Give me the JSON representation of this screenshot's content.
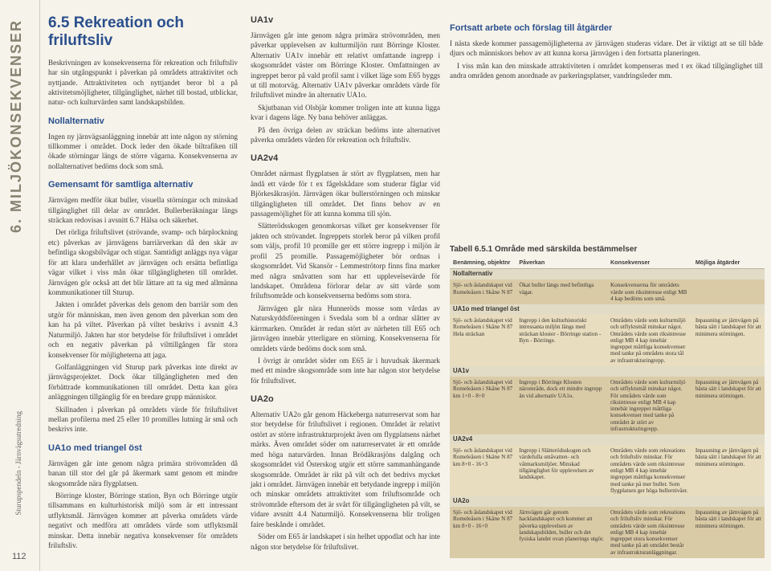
{
  "sidebar": {
    "title": "6. MILJÖKONSEKVENSER",
    "subtitle": "Sturupspendeln - Järnvägsutredning",
    "page": "112"
  },
  "heading": "6.5 Rekreation och friluftsliv",
  "intro1": "Beskrivningen av konsekvenserna för rekreation och friluftsliv har sin utgångspunkt i påverkan på områdets attraktivitet och nyttjande. Attraktiviteten och nyttjandet beror bl a på aktivitetsmöjligheter, tillgänglighet, närhet till bostad, utblickar, natur- och kulturvärden samt landskapsbilden.",
  "h_noll": "Nollalternativ",
  "noll1": "Ingen ny järnvägsanläggning innebär att inte någon ny störning tillkommer i området. Dock leder den ökade biltrafiken till ökade störningar längs de större vägarna. Konsekvenserna av nollalternativet bedöms dock som små.",
  "h_gem": "Gemensamt för samtliga alternativ",
  "gem1": "Järnvägen medför ökat buller, visuella störningar och minskad tillgänglighet till delar av området. Bullerberäkningar längs sträckan redovisas i avsnitt 6.7 Hälsa och säkerhet.",
  "gem2": "Det rörliga friluftslivet (strövande, svamp- och bärplockning etc) påverkas av järnvägens barriärverkan då den skär av befintliga skogsbilvägar och stigar. Samtidigt anläggs nya vägar för att klara underhållet av järnvägen och ersätta befintliga vägar vilket i viss mån ökar tillgängligheten till området. Järnvägen gör också att det blir lättare att ta sig med allmänna kommunikationer till Sturup.",
  "gem3": "Jakten i området påverkas dels genom den barriär som den utgör för människan, men även genom den påverkan som den kan ha på viltet. Påverkan på viltet beskrivs i avsnitt 4.3 Naturmiljö. Jakten har stor betydelse för friluftslivet i området och en negativ påverkan på vilttillgången får stora konsekvenser för möjligheterna att jaga.",
  "gem4": "Golfanläggningen vid Sturup park påverkas inte direkt av järnvägsprojektet. Dock ökar tillgängligheten med den förbättrade kommunikationen till området. Detta kan göra anläggningen tillgänglig för en bredare grupp människor.",
  "gem5": "Skillnaden i påverkan på områdets värde för friluftslivet mellan profilerna med 25 eller 10 promilles lutning är små och beskrivs inte.",
  "h_ua1o": "UA1o med triangel öst",
  "ua1o1": "Järnvägen går inte genom några primära strövområden då banan till stor del går på åkermark samt genom ett mindre skogsområde nära flygplatsen.",
  "ua1o2": "Börringe kloster, Börringe station, Byn och Börringe utgör tillsammans en kulturhistorisk miljö som är ett intressant utflyktsmål. Järnvägen kommer att påverka områdets värde negativt och medföra att områdets värde som utflyktsmål minskar. Detta innebär negativa konsekvenser för områdets friluftsliv.",
  "h_ua1v": "UA1v",
  "ua1v1": "Järnvägen går inte genom några primära strövområden, men påverkar upplevelsen av kulturmiljön runt Börringe Kloster. Alternativ UA1v innebär ett relativt omfattande ingrepp i skogsområdet väster om Börringe Kloster. Omfattningen av ingreppet beror på vald profil samt i vilket läge som E65 byggs ut till motorväg. Alternativ UA1v påverkar områdets värde för friluftslivet mindre än alternativ UA1o.",
  "ua1v2": "Skjutbanan vid Olsbjär kommer troligen inte att kunna ligga kvar i dagens läge. Ny bana behöver anläggas.",
  "ua1v3": "På den övriga delen av sträckan bedöms inte alternativet påverka områdets värden för rekreation och friluftsliv.",
  "h_ua2v4": "UA2v4",
  "ua2v4_1": "Området närmast flygplatsen är stört av flygplatsen, men har ändå ett värde för t ex fågelskådare som studerar fåglar vid Björkesåkrasjön. Järnvägen ökar bullerstörningen och minskar tillgängligheten till området. Det finns behov av en passagemöjlighet för att kunna komma till sjön.",
  "ua2v4_2": "Slätterödsskogen genomkorsas vilket ger konsekvenser för jakten och strövandet. Ingreppets storlek beror på vilken profil som väljs, profil 10 promille ger ett större ingrepp i miljön är profil 25 promille. Passagemöjligheter bör ordnas i skogsområdet. Vid Skansör - Lemmeströtorp finns fina marker med några småvatten som har ett upplevelsevärde för landskapet. Områdena förlorar delar av sitt värde som friluftsområde och konsekvenserna bedöms som stora.",
  "ua2v4_3": "Järnvägen går nära Hunneröds mosse som vårdas av Naturskyddsföreningen i Svedala som bl a ordnar slåtter av kärrmarken. Området är redan stört av närheten till E65 och järnvägen innebär ytterligare en störning. Konsekvenserna för områdets värde bedöms dock som små.",
  "ua2v4_4": "I övrigt är området söder om E65 är i huvudsak åkermark med ett mindre skogsområde som inte har någon stor betydelse för friluftslivet.",
  "h_ua2o": "UA2o",
  "ua2o1": "Alternativ UA2o går genom Häckeberga naturreservat som har stor betydelse för friluftslivet i regionen. Området är relativt ostört av större infrastrukturprojekt även om flygplatsens närhet märks. Även området söder om naturreservatet är ett område med höga naturvärden. Innan Brödåkrasjöns dalgång och skogsområdet vid Österskog utgör ett större sammanhängande skogsområde. Området är rikt på vilt och det bedrivs mycket jakt i området. Järnvägen innebär ett betydande ingrepp i miljön och minskar områdets attraktivitet som friluftsområde och strövområde eftersom det är svårt för tillgängligheten på vilt, se vidare avsnitt 4.4 Naturmiljö. Konsekvenserna blir troligen faire beskånde i området.",
  "ua2o2": "Söder om E65 är landskapet i sin helhet uppodlat och har inte någon stor betydelse för friluftslivet.",
  "h_fort": "Fortsatt arbete och förslag till åtgärder",
  "fort1": "I nästa skede kommer passagemöjligheterna av järnvägen studeras vidare. Det är viktigt att se till både djurs och människors behov av att kunna korsa järnvägen i den fortsatta planeringen.",
  "fort2": "I viss mån kan den minskade attraktiviteten i området kompenseras med t ex ökad tillgänglighet till andra områden genom anordnade av parkeringsplatser, vandringsleder mm.",
  "table": {
    "title": "Tabell 6.5.1 Område med särskilda bestämmelser",
    "headers": [
      "Benämning, objektnr",
      "Påverkan",
      "Konsekvenser",
      "Möjliga åtgärder"
    ],
    "sections": [
      {
        "name": "Nollalternativ",
        "rows": [
          [
            "Sjö- och åslandskapet vid Romeleåsen i Skåne N 87",
            "Ökat buller längs med befintliga vägar.",
            "Konsekvenserna för områdets värde som riksintresse enligt MB 4 kap bedöms som små.",
            ""
          ]
        ]
      },
      {
        "name": "UA1o med triangel öst",
        "rows": [
          [
            "Sjö- och åslandskapet vid Romeleåsen i Skåne N 87\nHela sträckan",
            "Ingrepp i den kulturhistoriskt intressanta miljön längs med sträckan kloster - Börringe station - Byn - Börringe.",
            "Områdets värde som kulturmiljö och utflyktsmål minskar något. Områdets värde som riksintresse enligt MB 4 kap innebär ingreppet måttliga konsekvenser med tanke på områdets stora tål av infrastrukturingrepp.",
            "Inpassning av järnvägen på bästa sätt i landskapet för att minimera störningen."
          ]
        ]
      },
      {
        "name": "UA1v",
        "rows": [
          [
            "Sjö- och åslandskapet vid Romeleåsen i Skåne N 87\nkm 1+0 - 8+0",
            "Ingrepp i Börringe Klosten närområde, dock ett mindre ingrepp än vid alternativ UA1o.",
            "Områdets värde som kulturmiljö och utflyktsmål minskar något. För områdets värde som riksintresse enligt MB 4 kap innebär ingreppet måttliga konsekvenser med tanke på området är stört av infrastrukturingrepp.",
            "Inpassning av järnvägen på bästa sätt i landskapet för att minimera störningen."
          ]
        ]
      },
      {
        "name": "UA2v4",
        "rows": [
          [
            "Sjö- och åslandskapet vid Romeleåsen i Skåne N 87\nkm 8+0 - 16+3",
            "Ingrepp i Slätterödsskogen och värdefulla småvatten- och våtmarksmiljöer. Minskad tillgänglighet för upplevelsen av landskapet.",
            "Områdets värde som rekreations och friluftsliv minskar. För områdets värde som riksintresse enligt MB 4 kap innebär ingreppet måttliga konsekvenser med tanke på mer buller. Som flygplatsen ger höga bullernivåer.",
            "Inpassning av järnvägen på bästa sätt i landskapet för att minimera störningen."
          ]
        ]
      },
      {
        "name": "UA2o",
        "rows": [
          [
            "Sjö- och åslandskapet vid Romeleåsen i Skåne N 87\nkm 8+0 - 16+0",
            "Järnvägen går genom hacklandskapet och kommer att påverka upplevelsen av landskapsbilden, buller och det fysiska landet ovan planerings utgör.",
            "Områdets värde som rekreations och friluftsliv minskar. För områdets värde som riksintresse enligt MB 4 kap innebär ingreppet stora konsekvenser med tanke på att området består av infrastrukturanläggningar.",
            "Inpassning av järnvägen på bästa sätt i landskapet för att minimera störningen."
          ]
        ]
      }
    ]
  }
}
